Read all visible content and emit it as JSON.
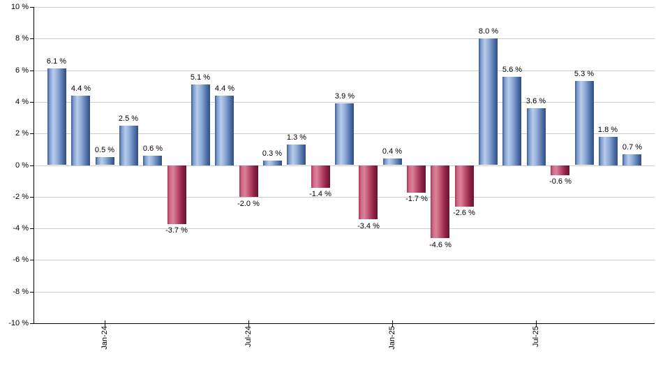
{
  "chart_data": {
    "type": "bar",
    "title": "",
    "xlabel": "",
    "ylabel": "",
    "ylim": [
      -10,
      10
    ],
    "ytick_step": 2,
    "grid": true,
    "legend": false,
    "value_suffix": " %",
    "points": [
      {
        "value": 6.1,
        "label": "6.1 %"
      },
      {
        "value": 4.4,
        "label": "4.4 %"
      },
      {
        "value": 0.5,
        "label": "0.5 %"
      },
      {
        "value": 2.5,
        "label": "2.5 %"
      },
      {
        "value": 0.6,
        "label": "0.6 %"
      },
      {
        "value": -3.7,
        "label": "-3.7 %"
      },
      {
        "value": 5.1,
        "label": "5.1 %"
      },
      {
        "value": 4.4,
        "label": "4.4 %"
      },
      {
        "value": -2.0,
        "label": "-2.0 %"
      },
      {
        "value": 0.3,
        "label": "0.3 %"
      },
      {
        "value": 1.3,
        "label": "1.3 %"
      },
      {
        "value": -1.4,
        "label": "-1.4 %"
      },
      {
        "value": 3.9,
        "label": "3.9 %"
      },
      {
        "value": -3.4,
        "label": "-3.4 %"
      },
      {
        "value": 0.4,
        "label": "0.4 %"
      },
      {
        "value": -1.7,
        "label": "-1.7 %"
      },
      {
        "value": -4.6,
        "label": "-4.6 %"
      },
      {
        "value": -2.6,
        "label": "-2.6 %"
      },
      {
        "value": 8.0,
        "label": "8.0 %"
      },
      {
        "value": 5.6,
        "label": "5.6 %"
      },
      {
        "value": 3.6,
        "label": "3.6 %"
      },
      {
        "value": -0.6,
        "label": "-0.6 %"
      },
      {
        "value": 5.3,
        "label": "5.3 %"
      },
      {
        "value": 1.8,
        "label": "1.8 %"
      },
      {
        "value": 0.7,
        "label": "0.7 %"
      }
    ],
    "yticks": [
      "10 %",
      "8 %",
      "6 %",
      "4 %",
      "2 %",
      "0 %",
      "-2 %",
      "-4 %",
      "-6 %",
      "-8 %",
      "-10 %"
    ],
    "xticks": [
      {
        "label": "Jan-24",
        "bar_index": 2
      },
      {
        "label": "Jul-24",
        "bar_index": 8
      },
      {
        "label": "Jan-25",
        "bar_index": 14
      },
      {
        "label": "Jul-25",
        "bar_index": 20
      }
    ],
    "colors": {
      "positive": "#8fb0dd",
      "negative": "#c64a6a",
      "grid": "#cccccc",
      "axis": "#000000",
      "text": "#000000"
    }
  }
}
